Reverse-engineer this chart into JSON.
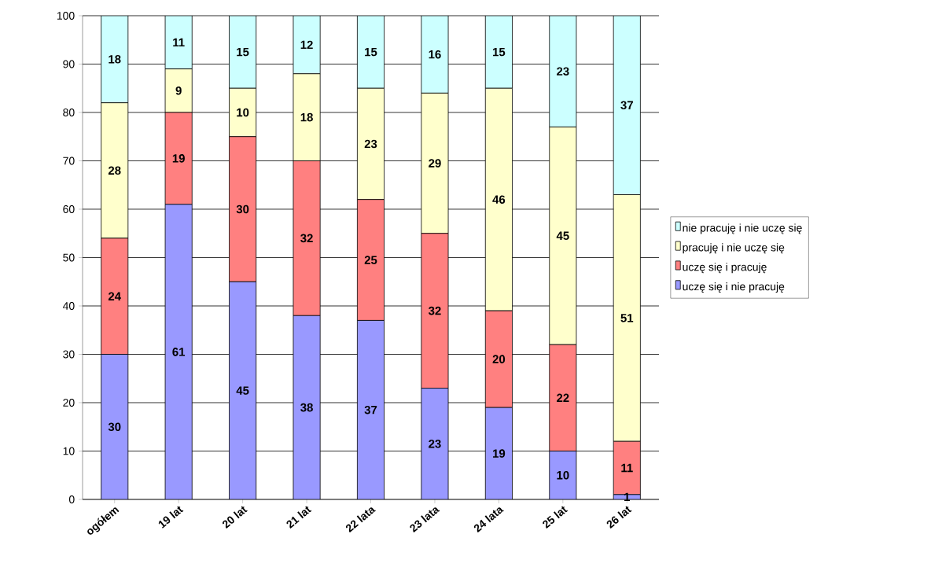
{
  "chart_data": {
    "type": "bar",
    "stacked": true,
    "categories": [
      "ogółem",
      "19 lat",
      "20 lat",
      "21 lat",
      "22 lata",
      "23 lata",
      "24 lata",
      "25 lat",
      "26 lat"
    ],
    "series": [
      {
        "name": "uczę się i nie pracuję",
        "color": "#9999ff",
        "values": [
          30,
          61,
          45,
          38,
          37,
          23,
          19,
          10,
          1
        ]
      },
      {
        "name": "uczę się i pracuję",
        "color": "#ff8080",
        "values": [
          24,
          19,
          30,
          32,
          25,
          32,
          20,
          22,
          11
        ]
      },
      {
        "name": "pracuję i nie uczę się",
        "color": "#ffffcc",
        "values": [
          28,
          9,
          10,
          18,
          23,
          29,
          46,
          45,
          51
        ]
      },
      {
        "name": "nie pracuję i nie uczę się",
        "color": "#ccffff",
        "values": [
          18,
          11,
          15,
          12,
          15,
          16,
          15,
          23,
          37
        ]
      }
    ],
    "ylim": [
      0,
      100
    ],
    "yticks": [
      0,
      10,
      20,
      30,
      40,
      50,
      60,
      70,
      80,
      90,
      100
    ],
    "grid": "y",
    "legend": "right",
    "data_labels": true
  }
}
